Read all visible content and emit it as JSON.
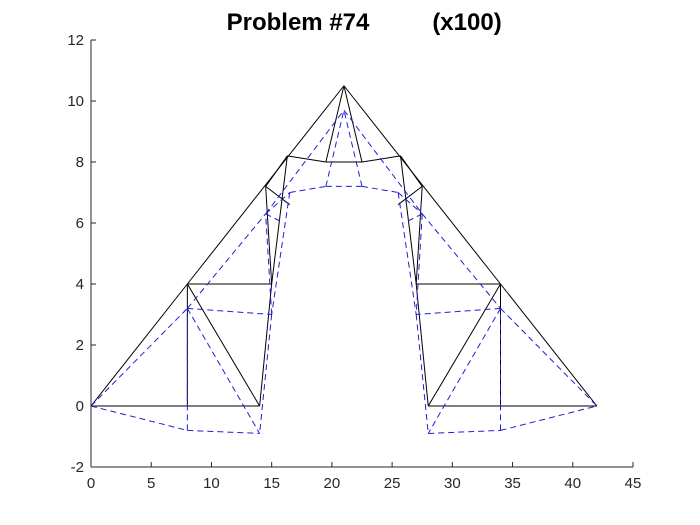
{
  "chart_data": {
    "type": "line",
    "title": "Problem #74",
    "subtitle": "(x100)",
    "xlabel": "",
    "ylabel": "",
    "xlim": [
      0,
      45
    ],
    "ylim": [
      -2,
      12
    ],
    "xticks": [
      0,
      5,
      10,
      15,
      20,
      25,
      30,
      35,
      40,
      45
    ],
    "yticks": [
      -2,
      0,
      2,
      4,
      6,
      8,
      10,
      12
    ],
    "grid": false,
    "series": [
      {
        "style": "solid",
        "color": "#000000",
        "segments": [
          [
            [
              0,
              0
            ],
            [
              8,
              4
            ]
          ],
          [
            [
              8,
              4
            ],
            [
              21,
              10.5
            ]
          ],
          [
            [
              21,
              10.5
            ],
            [
              34,
              4
            ]
          ],
          [
            [
              34,
              4
            ],
            [
              42,
              0
            ]
          ],
          [
            [
              0,
              0
            ],
            [
              14,
              0
            ]
          ],
          [
            [
              28,
              0
            ],
            [
              42,
              0
            ]
          ],
          [
            [
              8,
              0
            ],
            [
              8,
              4
            ]
          ],
          [
            [
              8,
              4
            ],
            [
              14,
              0
            ]
          ],
          [
            [
              8,
              4
            ],
            [
              15,
              4
            ]
          ],
          [
            [
              15,
              4
            ],
            [
              14,
              0
            ]
          ],
          [
            [
              34,
              0
            ],
            [
              34,
              4
            ]
          ],
          [
            [
              34,
              4
            ],
            [
              28,
              0
            ]
          ],
          [
            [
              34,
              4
            ],
            [
              27,
              4
            ]
          ],
          [
            [
              27,
              4
            ],
            [
              28,
              0
            ]
          ],
          [
            [
              15,
              4
            ],
            [
              14.5,
              7.2
            ]
          ],
          [
            [
              14.5,
              7.2
            ],
            [
              16.3,
              8.2
            ]
          ],
          [
            [
              16.3,
              8.2
            ],
            [
              15,
              4
            ]
          ],
          [
            [
              14.5,
              7.2
            ],
            [
              16.5,
              6.6
            ]
          ],
          [
            [
              16.3,
              8.2
            ],
            [
              19.5,
              8
            ]
          ],
          [
            [
              19.5,
              8
            ],
            [
              21,
              10.5
            ]
          ],
          [
            [
              19.5,
              8
            ],
            [
              22.5,
              8
            ]
          ],
          [
            [
              22.5,
              8
            ],
            [
              21,
              10.5
            ]
          ],
          [
            [
              22.5,
              8
            ],
            [
              25.7,
              8.2
            ]
          ],
          [
            [
              25.7,
              8.2
            ],
            [
              27.5,
              7.2
            ]
          ],
          [
            [
              27.5,
              7.2
            ],
            [
              27,
              4
            ]
          ],
          [
            [
              25.7,
              8.2
            ],
            [
              27,
              4
            ]
          ],
          [
            [
              27.5,
              7.2
            ],
            [
              25.5,
              6.6
            ]
          ]
        ]
      },
      {
        "style": "dashed",
        "color": "#1f1fd6",
        "segments": [
          [
            [
              0,
              0
            ],
            [
              8,
              3.2
            ]
          ],
          [
            [
              8,
              3.2
            ],
            [
              14.5,
              6.3
            ]
          ],
          [
            [
              14.5,
              6.3
            ],
            [
              21,
              9.7
            ]
          ],
          [
            [
              21,
              9.7
            ],
            [
              27.5,
              6.3
            ]
          ],
          [
            [
              27.5,
              6.3
            ],
            [
              34,
              3.2
            ]
          ],
          [
            [
              34,
              3.2
            ],
            [
              42,
              0
            ]
          ],
          [
            [
              0,
              0
            ],
            [
              8,
              -0.8
            ]
          ],
          [
            [
              8,
              -0.8
            ],
            [
              14,
              -0.9
            ]
          ],
          [
            [
              28,
              -0.9
            ],
            [
              34,
              -0.8
            ]
          ],
          [
            [
              34,
              -0.8
            ],
            [
              42,
              0
            ]
          ],
          [
            [
              8,
              -0.8
            ],
            [
              8,
              3.2
            ]
          ],
          [
            [
              8,
              3.2
            ],
            [
              14,
              -0.9
            ]
          ],
          [
            [
              8,
              3.2
            ],
            [
              15,
              3
            ]
          ],
          [
            [
              15,
              3
            ],
            [
              14,
              -0.9
            ]
          ],
          [
            [
              34,
              -0.8
            ],
            [
              34,
              3.2
            ]
          ],
          [
            [
              34,
              3.2
            ],
            [
              28,
              -0.9
            ]
          ],
          [
            [
              34,
              3.2
            ],
            [
              27,
              3
            ]
          ],
          [
            [
              27,
              3
            ],
            [
              28,
              -0.9
            ]
          ],
          [
            [
              15,
              3
            ],
            [
              14.5,
              6.3
            ]
          ],
          [
            [
              14.5,
              6.3
            ],
            [
              16.5,
              7
            ]
          ],
          [
            [
              16.5,
              7
            ],
            [
              15,
              3
            ]
          ],
          [
            [
              14.5,
              6.3
            ],
            [
              16,
              6
            ]
          ],
          [
            [
              16.5,
              7
            ],
            [
              19.5,
              7.2
            ]
          ],
          [
            [
              19.5,
              7.2
            ],
            [
              21,
              9.7
            ]
          ],
          [
            [
              19.5,
              7.2
            ],
            [
              22.5,
              7.2
            ]
          ],
          [
            [
              22.5,
              7.2
            ],
            [
              21,
              9.7
            ]
          ],
          [
            [
              22.5,
              7.2
            ],
            [
              25.5,
              7
            ]
          ],
          [
            [
              25.5,
              7
            ],
            [
              27.5,
              6.3
            ]
          ],
          [
            [
              27.5,
              6.3
            ],
            [
              27,
              3
            ]
          ],
          [
            [
              25.5,
              7
            ],
            [
              27,
              3
            ]
          ],
          [
            [
              27.5,
              6.3
            ],
            [
              26,
              6
            ]
          ]
        ]
      }
    ]
  }
}
